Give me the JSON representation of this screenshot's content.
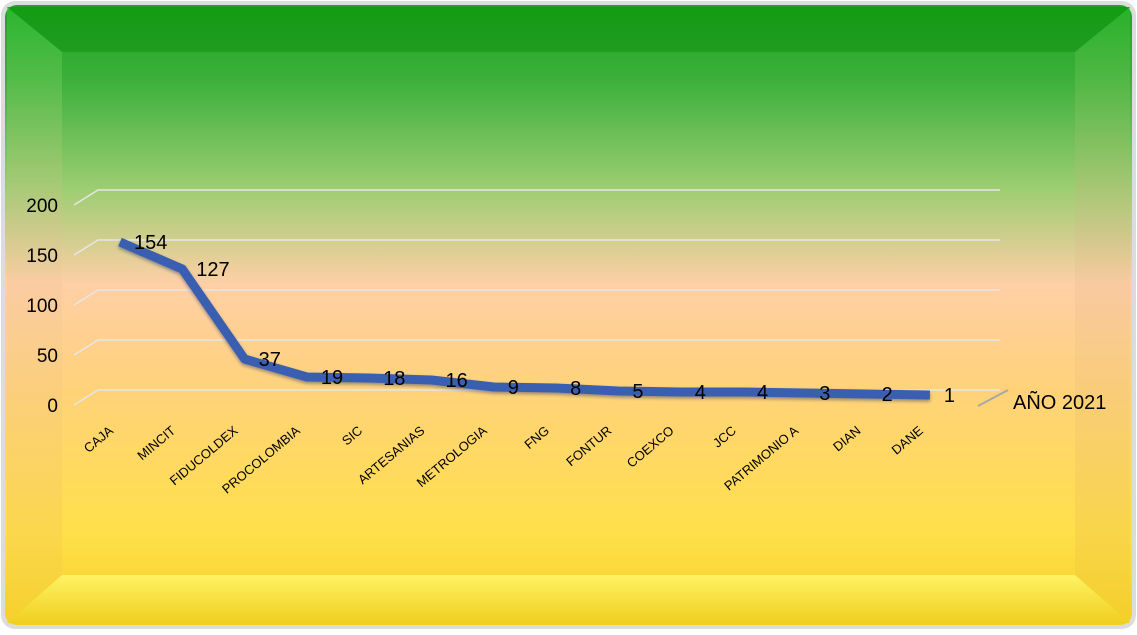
{
  "chart_data": {
    "type": "line",
    "categories": [
      "CAJA",
      "MINCIT",
      "FIDUCOLDEX",
      "PROCOLOMBIA",
      "SIC",
      "ARTESANIAS",
      "METROLOGIA",
      "FNG",
      "FONTUR",
      "COEXCO",
      "JCC",
      "PATRIMONIO A",
      "DIAN",
      "DANE"
    ],
    "series": [
      {
        "name": "AÑO 2021",
        "values": [
          154,
          127,
          37,
          19,
          18,
          16,
          9,
          8,
          5,
          4,
          4,
          3,
          2,
          1
        ]
      }
    ],
    "ylim": [
      0,
      200
    ],
    "yticks": [
      "0",
      "50",
      "100",
      "150",
      "200"
    ],
    "grid": true,
    "legend": "right",
    "colors": {
      "line": "#3a5fb0",
      "grid": "#e6e6e6"
    }
  }
}
